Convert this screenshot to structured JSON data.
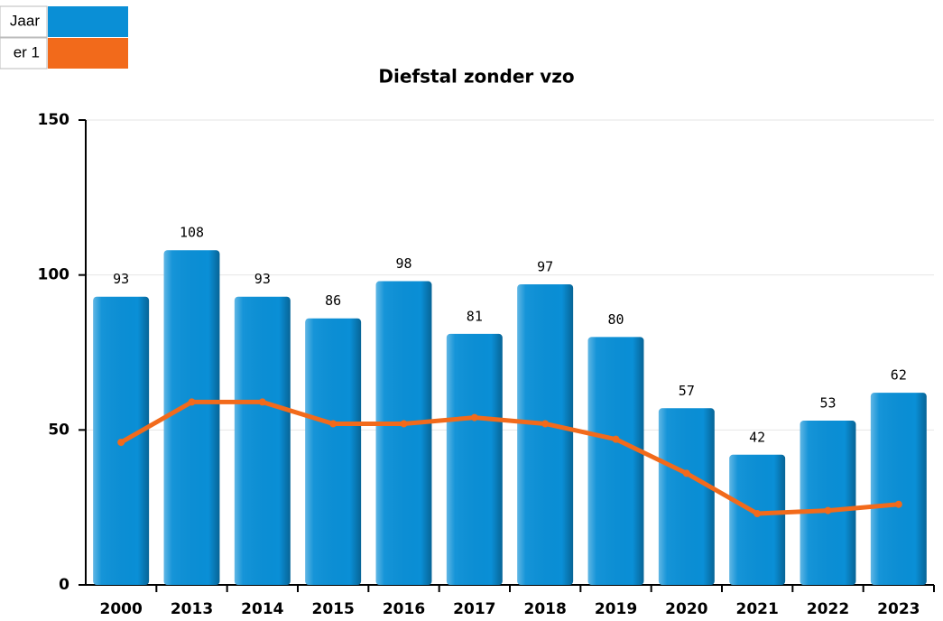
{
  "chart_data": {
    "type": "bar+line",
    "title": "Diefstal zonder vzo",
    "categories": [
      "2000",
      "2013",
      "2014",
      "2015",
      "2016",
      "2017",
      "2018",
      "2019",
      "2020",
      "2021",
      "2022",
      "2023"
    ],
    "series": [
      {
        "name": "Jaar",
        "type": "bar",
        "color": "#0a8fd6",
        "values": [
          93,
          108,
          93,
          86,
          98,
          81,
          97,
          80,
          57,
          42,
          53,
          62
        ]
      },
      {
        "name": "er 1",
        "type": "line",
        "color": "#f26a1b",
        "values": [
          46,
          59,
          59,
          52,
          52,
          54,
          52,
          47,
          36,
          23,
          24,
          26
        ]
      }
    ],
    "ylim": [
      0,
      150
    ],
    "yticks": [
      0,
      50,
      100,
      150
    ],
    "grid": true,
    "legend": "top-left"
  }
}
